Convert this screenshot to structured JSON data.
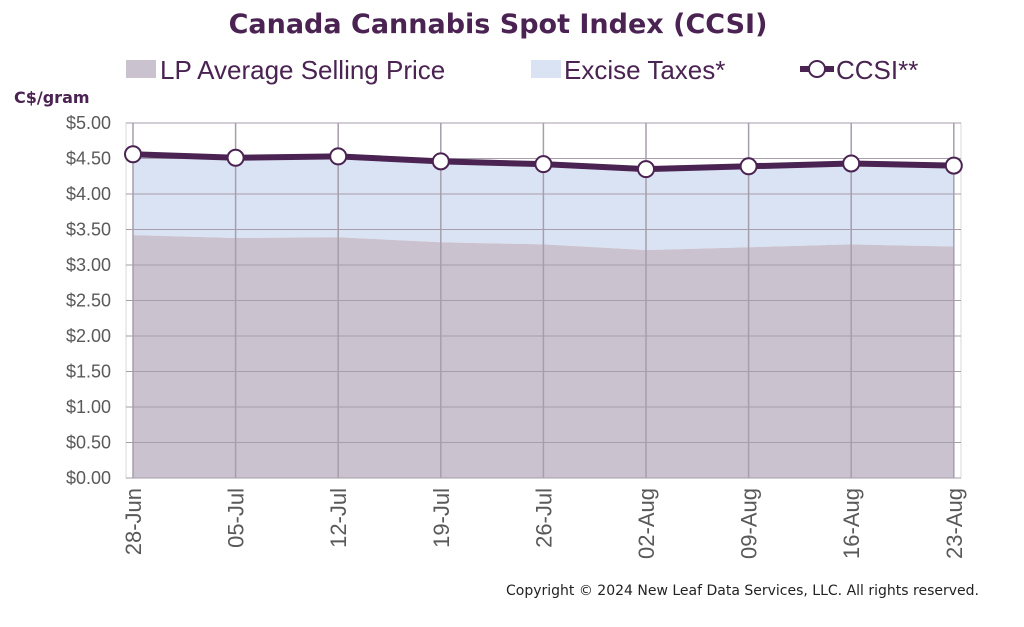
{
  "chart_data": {
    "type": "area",
    "title": "Canada Cannabis Spot Index (CCSI)",
    "ylabel": "C$/gram",
    "xlabel": "",
    "categories": [
      "28-Jun",
      "05-Jul",
      "12-Jul",
      "19-Jul",
      "26-Jul",
      "02-Aug",
      "09-Aug",
      "16-Aug",
      "23-Aug"
    ],
    "ylim": [
      0,
      5
    ],
    "ytick_labels": [
      "$0.00",
      "$0.50",
      "$1.00",
      "$1.50",
      "$2.00",
      "$2.50",
      "$3.00",
      "$3.50",
      "$4.00",
      "$4.50",
      "$5.00"
    ],
    "grid": true,
    "legend_position": "top",
    "series": [
      {
        "name": "LP Average Selling Price",
        "kind": "area",
        "color": "#cbc2d0",
        "values": [
          3.42,
          3.38,
          3.39,
          3.32,
          3.29,
          3.21,
          3.25,
          3.29,
          3.26
        ]
      },
      {
        "name": "Excise Taxes*",
        "kind": "area",
        "color": "#dae3f3",
        "values": [
          1.14,
          1.13,
          1.14,
          1.14,
          1.13,
          1.14,
          1.14,
          1.14,
          1.14
        ]
      },
      {
        "name": "CCSI**",
        "kind": "line",
        "color": "#4a2352",
        "values": [
          4.56,
          4.51,
          4.53,
          4.46,
          4.42,
          4.35,
          4.39,
          4.43,
          4.4
        ]
      }
    ],
    "copyright": "Copyright © 2024 New Leaf Data Services, LLC. All rights reserved."
  }
}
